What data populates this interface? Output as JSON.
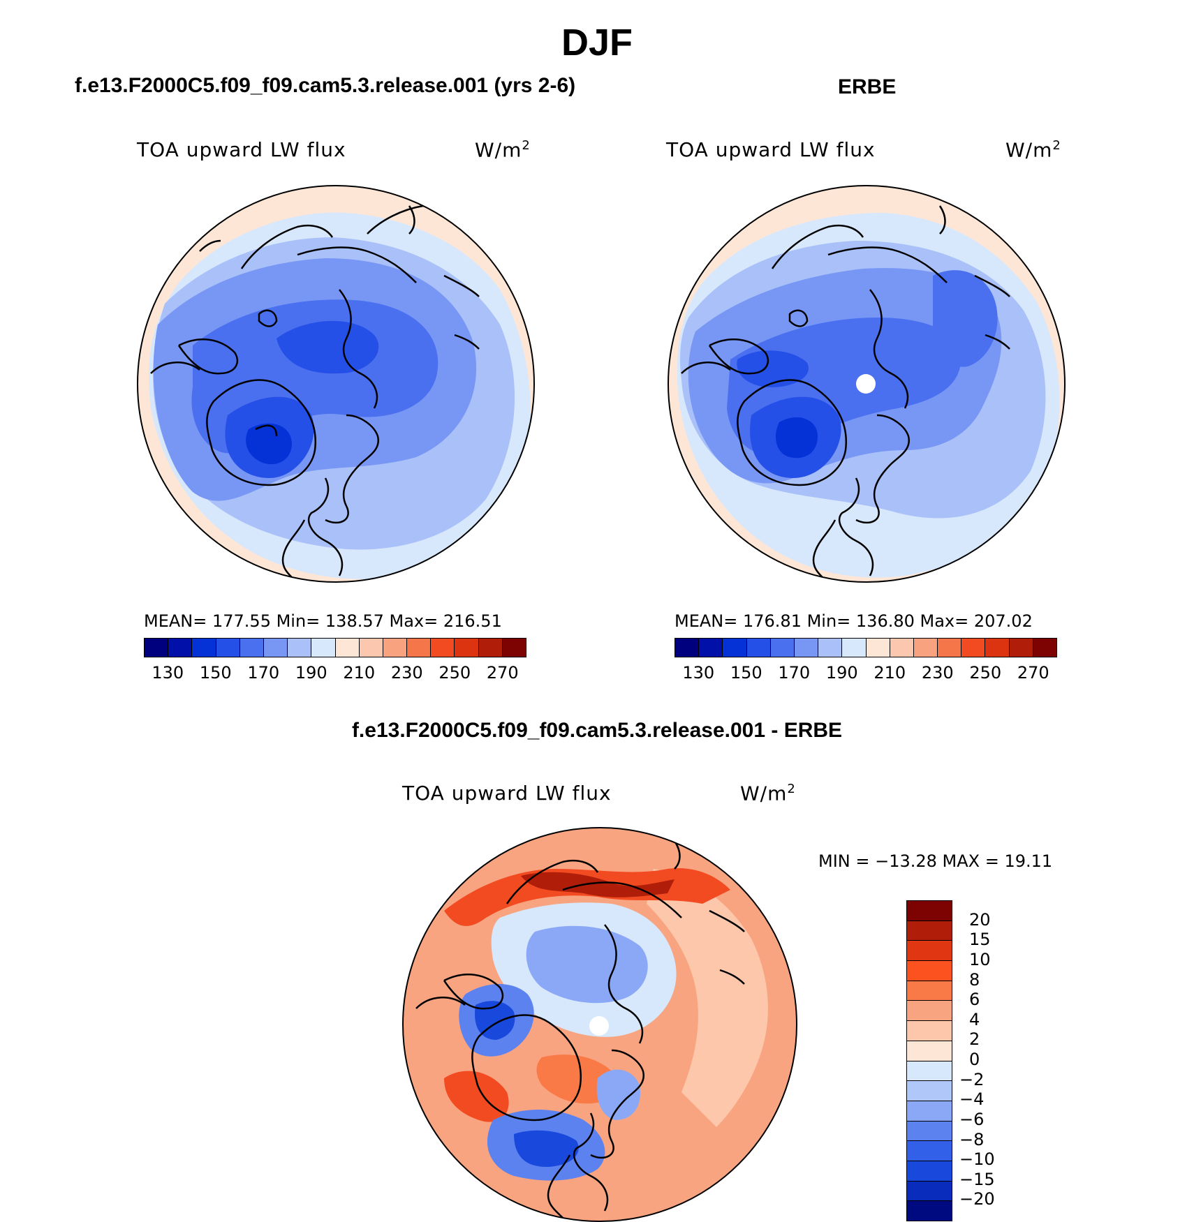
{
  "title": "DJF",
  "panels": {
    "model": {
      "title": "f.e13.F2000C5.f09_f09.cam5.3.release.001 (yrs 2-6)",
      "variable": "TOA upward LW flux",
      "units_base": "W/m",
      "units_exp": "2",
      "stats": "MEAN=  177.55   Min=  138.57   Max=  216.51"
    },
    "obs": {
      "title": "ERBE",
      "variable": "TOA upward LW flux",
      "units_base": "W/m",
      "units_exp": "2",
      "stats": "MEAN=  176.81   Min=  136.80   Max=  207.02"
    },
    "diff": {
      "title": "f.e13.F2000C5.f09_f09.cam5.3.release.001 - ERBE",
      "variable": "TOA upward LW flux",
      "units_base": "W/m",
      "units_exp": "2",
      "stats": "MIN = −13.28 MAX =   19.11"
    }
  },
  "abs_colorbar": {
    "colors": [
      "#00007f",
      "#0010a8",
      "#0532d6",
      "#2450e8",
      "#4a70f0",
      "#7896f4",
      "#a9c0f8",
      "#d7e8fd",
      "#fde6d6",
      "#fcc7af",
      "#f9a280",
      "#f57648",
      "#f24b22",
      "#dc3410",
      "#b01d09",
      "#7d0303"
    ],
    "ticks": [
      "130",
      "150",
      "170",
      "190",
      "210",
      "230",
      "250",
      "270"
    ]
  },
  "diff_colorbar": {
    "colors": [
      "#7d0303",
      "#b01d09",
      "#e03712",
      "#fc5220",
      "#f97a46",
      "#f9a480",
      "#fcc7aa",
      "#fde6d6",
      "#d7e8fd",
      "#b0c8f9",
      "#8aa8f6",
      "#5c82ef",
      "#3260e8",
      "#1848dc",
      "#0a2cbc",
      "#000a80"
    ],
    "ticks": [
      "20",
      "15",
      "10",
      "8",
      "6",
      "4",
      "2",
      "0",
      "−2",
      "−4",
      "−6",
      "−8",
      "−10",
      "−15",
      "−20"
    ]
  },
  "maps": [
    {
      "name": "model",
      "pole_marker": false,
      "rim": "#fde6d6"
    },
    {
      "name": "obs",
      "pole_marker": true,
      "rim": "#fde6d6"
    },
    {
      "name": "diff",
      "pole_marker": true,
      "rim": "#f9a480"
    }
  ]
}
